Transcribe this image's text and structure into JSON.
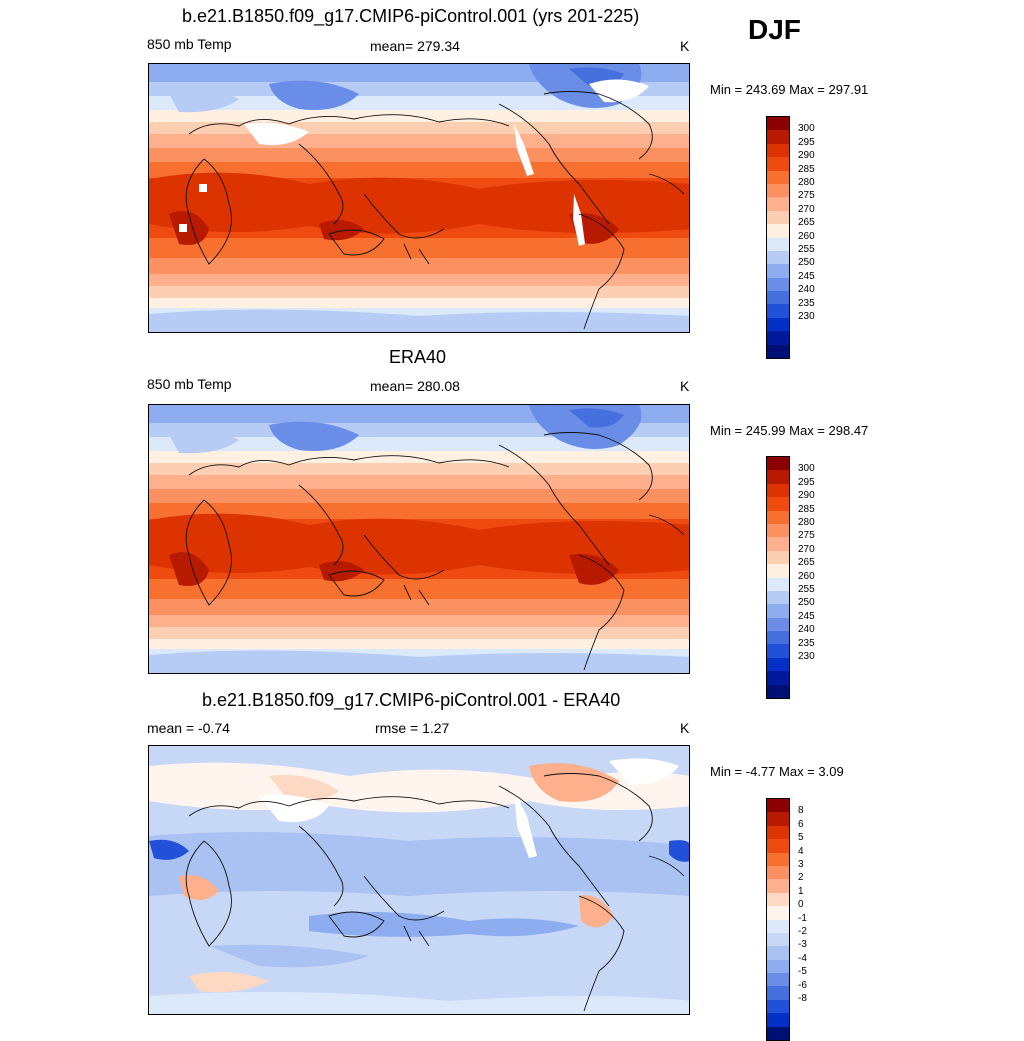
{
  "season": "DJF",
  "colors": {
    "temp_scale": [
      "#8b0000",
      "#b81a00",
      "#dd3300",
      "#ef4a10",
      "#f7702f",
      "#fb9060",
      "#fdb08b",
      "#fdcfb2",
      "#fff0e2",
      "#dbe9fb",
      "#b6ccf5",
      "#8eadf0",
      "#6a8de8",
      "#4570dd",
      "#2350d8",
      "#0530c8",
      "#001a9c",
      "#000f75"
    ],
    "diff_scale": [
      "#8b0000",
      "#b81a00",
      "#dd3300",
      "#ef4a10",
      "#f7702f",
      "#fb9060",
      "#fdb08b",
      "#fdd8c3",
      "#fff5ee",
      "#dbe9fb",
      "#c6d8f6",
      "#a9c2f2",
      "#8eadf0",
      "#6a8de8",
      "#4570dd",
      "#2350d8",
      "#0530c8",
      "#000f75"
    ]
  },
  "panels": [
    {
      "title": "b.e21.B1850.f09_g17.CMIP6-piControl.001 (yrs 201-225)",
      "left_label": "850 mb Temp",
      "center_label": "mean= 279.34",
      "units": "K",
      "minmax": "Min = 243.69 Max = 297.91",
      "kind": "temp"
    },
    {
      "title": "ERA40",
      "left_label": "850 mb Temp",
      "center_label": "mean= 280.08",
      "units": "K",
      "minmax": "Min = 245.99 Max = 298.47",
      "kind": "temp"
    },
    {
      "title": "b.e21.B1850.f09_g17.CMIP6-piControl.001 - ERA40",
      "left_label": "mean =  -0.74",
      "center_label": "rmse =   1.27",
      "units": "K",
      "minmax": "Min =  -4.77 Max =   3.09",
      "kind": "diff"
    }
  ],
  "chart_data": [
    {
      "type": "heatmap",
      "title": "b.e21.B1850.f09_g17.CMIP6-piControl.001 (yrs 201-225)",
      "variable": "850 mb Temp",
      "units": "K",
      "mean": 279.34,
      "min": 243.69,
      "max": 297.91,
      "colorbar_levels": [
        "300",
        "295",
        "290",
        "285",
        "280",
        "275",
        "270",
        "265",
        "260",
        "255",
        "250",
        "245",
        "240",
        "235",
        "230"
      ]
    },
    {
      "type": "heatmap",
      "title": "ERA40",
      "variable": "850 mb Temp",
      "units": "K",
      "mean": 280.08,
      "min": 245.99,
      "max": 298.47,
      "colorbar_levels": [
        "300",
        "295",
        "290",
        "285",
        "280",
        "275",
        "270",
        "265",
        "260",
        "255",
        "250",
        "245",
        "240",
        "235",
        "230"
      ]
    },
    {
      "type": "heatmap",
      "title": "b.e21.B1850.f09_g17.CMIP6-piControl.001 - ERA40",
      "units": "K",
      "mean": -0.74,
      "rmse": 1.27,
      "min": -4.77,
      "max": 3.09,
      "colorbar_levels": [
        "8",
        "6",
        "5",
        "4",
        "3",
        "2",
        "1",
        "0",
        "-1",
        "-2",
        "-3",
        "-4",
        "-5",
        "-6",
        "-8"
      ]
    }
  ]
}
